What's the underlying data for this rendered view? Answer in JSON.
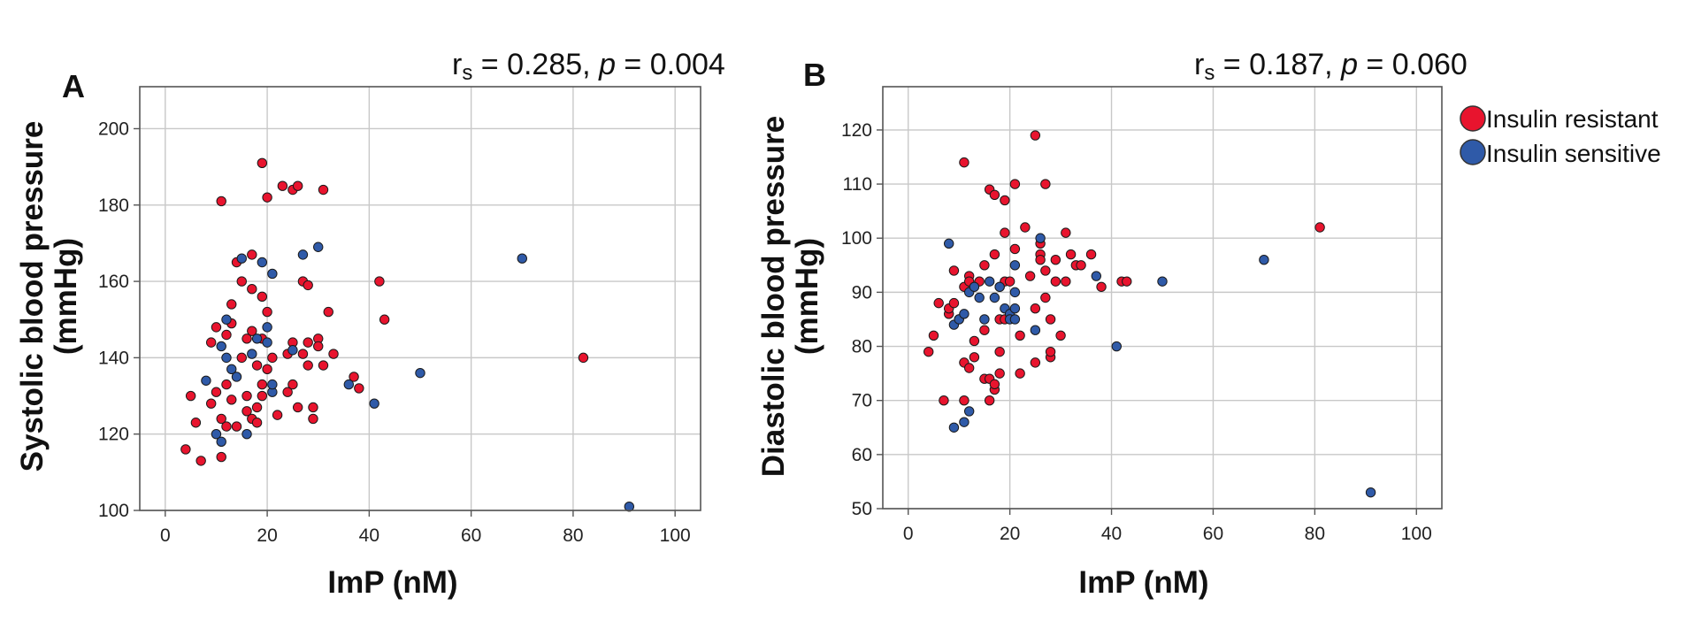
{
  "chart_data": [
    {
      "type": "scatter",
      "panel": "A",
      "stat_prefix": "r",
      "stat_sub": "s",
      "stat_r": " = 0.285, ",
      "stat_p_label": "p",
      "stat_p_value": " = 0.004",
      "xlabel": "ImP (nM)",
      "ylabel_line1": "Systolic blood pressure",
      "ylabel_line2": "(mmHg)",
      "xlim": [
        -5,
        105
      ],
      "ylim": [
        100,
        211
      ],
      "xticks": [
        0,
        20,
        40,
        60,
        80,
        100
      ],
      "yticks": [
        100,
        120,
        140,
        160,
        180,
        200
      ],
      "grid": true,
      "series": [
        {
          "name": "Insulin resistant",
          "color": "#e8142e",
          "points": [
            [
              4,
              116
            ],
            [
              5,
              130
            ],
            [
              6,
              123
            ],
            [
              7,
              113
            ],
            [
              9,
              128
            ],
            [
              9,
              144
            ],
            [
              10,
              148
            ],
            [
              10,
              131
            ],
            [
              11,
              181
            ],
            [
              11,
              124
            ],
            [
              11,
              114
            ],
            [
              12,
              133
            ],
            [
              12,
              146
            ],
            [
              12,
              122
            ],
            [
              13,
              154
            ],
            [
              13,
              149
            ],
            [
              13,
              129
            ],
            [
              14,
              122
            ],
            [
              14,
              165
            ],
            [
              15,
              160
            ],
            [
              15,
              140
            ],
            [
              16,
              130
            ],
            [
              16,
              145
            ],
            [
              16,
              126
            ],
            [
              17,
              167
            ],
            [
              17,
              158
            ],
            [
              17,
              147
            ],
            [
              17,
              124
            ],
            [
              18,
              123
            ],
            [
              18,
              138
            ],
            [
              18,
              127
            ],
            [
              19,
              156
            ],
            [
              19,
              145
            ],
            [
              19,
              133
            ],
            [
              19,
              130
            ],
            [
              19,
              191
            ],
            [
              20,
              182
            ],
            [
              20,
              137
            ],
            [
              20,
              152
            ],
            [
              21,
              140
            ],
            [
              22,
              125
            ],
            [
              23,
              185
            ],
            [
              24,
              131
            ],
            [
              24,
              141
            ],
            [
              25,
              184
            ],
            [
              25,
              133
            ],
            [
              25,
              144
            ],
            [
              26,
              185
            ],
            [
              26,
              127
            ],
            [
              27,
              160
            ],
            [
              27,
              141
            ],
            [
              28,
              138
            ],
            [
              28,
              159
            ],
            [
              28,
              144
            ],
            [
              29,
              124
            ],
            [
              29,
              127
            ],
            [
              30,
              145
            ],
            [
              30,
              143
            ],
            [
              31,
              184
            ],
            [
              31,
              138
            ],
            [
              32,
              152
            ],
            [
              33,
              141
            ],
            [
              37,
              135
            ],
            [
              38,
              132
            ],
            [
              42,
              160
            ],
            [
              43,
              150
            ],
            [
              82,
              140
            ]
          ]
        },
        {
          "name": "Insulin sensitive",
          "color": "#2f5aa8",
          "points": [
            [
              8,
              134
            ],
            [
              10,
              120
            ],
            [
              11,
              118
            ],
            [
              11,
              143
            ],
            [
              12,
              150
            ],
            [
              12,
              140
            ],
            [
              13,
              137
            ],
            [
              14,
              135
            ],
            [
              15,
              166
            ],
            [
              16,
              120
            ],
            [
              17,
              141
            ],
            [
              18,
              145
            ],
            [
              19,
              165
            ],
            [
              20,
              148
            ],
            [
              20,
              144
            ],
            [
              21,
              162
            ],
            [
              21,
              131
            ],
            [
              21,
              133
            ],
            [
              25,
              142
            ],
            [
              27,
              167
            ],
            [
              30,
              169
            ],
            [
              36,
              133
            ],
            [
              41,
              128
            ],
            [
              50,
              136
            ],
            [
              70,
              166
            ],
            [
              91,
              101
            ]
          ]
        }
      ]
    },
    {
      "type": "scatter",
      "panel": "B",
      "stat_prefix": "r",
      "stat_sub": "s",
      "stat_r": " = 0.187, ",
      "stat_p_label": "p",
      "stat_p_value": " = 0.060",
      "xlabel": "ImP (nM)",
      "ylabel_line1": "Diastolic blood pressure",
      "ylabel_line2": "(mmHg)",
      "xlim": [
        -5,
        105
      ],
      "ylim": [
        50,
        128
      ],
      "xticks": [
        0,
        20,
        40,
        60,
        80,
        100
      ],
      "yticks": [
        50,
        60,
        70,
        80,
        90,
        100,
        110,
        120
      ],
      "grid": true,
      "series": [
        {
          "name": "Insulin resistant",
          "color": "#e8142e",
          "points": [
            [
              4,
              79
            ],
            [
              5,
              82
            ],
            [
              6,
              88
            ],
            [
              7,
              70
            ],
            [
              8,
              86
            ],
            [
              8,
              87
            ],
            [
              9,
              94
            ],
            [
              9,
              88
            ],
            [
              10,
              85
            ],
            [
              11,
              114
            ],
            [
              11,
              77
            ],
            [
              11,
              91
            ],
            [
              11,
              70
            ],
            [
              12,
              93
            ],
            [
              12,
              76
            ],
            [
              12,
              92
            ],
            [
              13,
              81
            ],
            [
              13,
              78
            ],
            [
              14,
              92
            ],
            [
              15,
              95
            ],
            [
              15,
              74
            ],
            [
              15,
              83
            ],
            [
              16,
              109
            ],
            [
              16,
              70
            ],
            [
              16,
              74
            ],
            [
              17,
              108
            ],
            [
              17,
              97
            ],
            [
              17,
              72
            ],
            [
              17,
              73
            ],
            [
              18,
              85
            ],
            [
              18,
              79
            ],
            [
              18,
              91
            ],
            [
              18,
              75
            ],
            [
              19,
              107
            ],
            [
              19,
              85
            ],
            [
              19,
              92
            ],
            [
              19,
              101
            ],
            [
              20,
              92
            ],
            [
              21,
              110
            ],
            [
              21,
              98
            ],
            [
              22,
              82
            ],
            [
              22,
              75
            ],
            [
              23,
              102
            ],
            [
              24,
              93
            ],
            [
              25,
              119
            ],
            [
              25,
              87
            ],
            [
              25,
              77
            ],
            [
              26,
              97
            ],
            [
              26,
              99
            ],
            [
              26,
              96
            ],
            [
              27,
              110
            ],
            [
              27,
              89
            ],
            [
              27,
              94
            ],
            [
              28,
              85
            ],
            [
              28,
              78
            ],
            [
              28,
              79
            ],
            [
              29,
              96
            ],
            [
              29,
              92
            ],
            [
              30,
              82
            ],
            [
              31,
              101
            ],
            [
              31,
              92
            ],
            [
              32,
              97
            ],
            [
              33,
              95
            ],
            [
              34,
              95
            ],
            [
              36,
              97
            ],
            [
              38,
              91
            ],
            [
              42,
              92
            ],
            [
              43,
              92
            ],
            [
              81,
              102
            ]
          ]
        },
        {
          "name": "Insulin sensitive",
          "color": "#2f5aa8",
          "points": [
            [
              8,
              99
            ],
            [
              9,
              84
            ],
            [
              9,
              65
            ],
            [
              10,
              85
            ],
            [
              11,
              66
            ],
            [
              11,
              86
            ],
            [
              12,
              68
            ],
            [
              12,
              90
            ],
            [
              13,
              91
            ],
            [
              14,
              89
            ],
            [
              15,
              85
            ],
            [
              16,
              92
            ],
            [
              17,
              89
            ],
            [
              18,
              91
            ],
            [
              19,
              87
            ],
            [
              20,
              86
            ],
            [
              20,
              85
            ],
            [
              21,
              87
            ],
            [
              21,
              85
            ],
            [
              21,
              95
            ],
            [
              21,
              90
            ],
            [
              25,
              83
            ],
            [
              26,
              100
            ],
            [
              37,
              93
            ],
            [
              41,
              80
            ],
            [
              50,
              92
            ],
            [
              70,
              96
            ],
            [
              91,
              53
            ]
          ]
        }
      ]
    }
  ],
  "legend": {
    "placement": "top-right",
    "items": [
      {
        "label": "Insulin resistant",
        "color": "#e8142e"
      },
      {
        "label": "Insulin sensitive",
        "color": "#2f5aa8"
      }
    ]
  }
}
